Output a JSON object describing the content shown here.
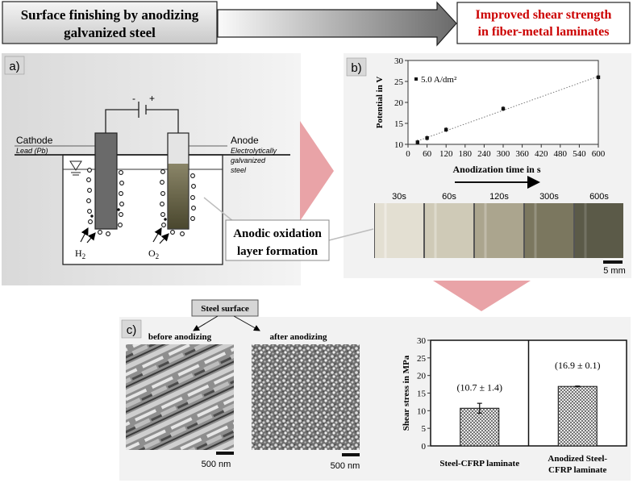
{
  "header": {
    "left_box": "Surface finishing by anodizing galvanized steel",
    "left_line1": "Surface finishing by anodizing",
    "left_line2": "galvanized steel",
    "right_line1": "Improved shear strength",
    "right_line2": "in fiber-metal laminates"
  },
  "panel_a": {
    "label": "a)",
    "polarity_minus": "-",
    "polarity_plus": "+",
    "cathode": "Cathode",
    "cathode_sub": "Lead (Pb)",
    "anode": "Anode",
    "anode_sub1": "Electrolytically",
    "anode_sub2": "galvanized",
    "anode_sub3": "steel",
    "h2": "H",
    "h2_sub": "2",
    "o2": "O",
    "o2_sub": "2",
    "callout1": "Anodic oxidation",
    "callout2": "layer formation"
  },
  "panel_b": {
    "label": "b)",
    "strip_times": [
      "30s",
      "60s",
      "120s",
      "300s",
      "600s"
    ],
    "arrow_label": "Anodization time in s",
    "scale": "5 mm"
  },
  "panel_c": {
    "label": "c)",
    "steel_surface": "Steel surface",
    "before": "before anodizing",
    "after": "after anodizing",
    "scale_left": "500 nm",
    "scale_right": "500 nm"
  },
  "colors": {
    "panel_bg": "#f2f2f2",
    "highlight_red": "#cc0000",
    "pink_arrow": "#e9a3a7",
    "anode_oxide": "#5a5638"
  },
  "chart_data": [
    {
      "type": "scatter",
      "ylabel": "Potential in V",
      "legend": "5.0 A/dm²",
      "legend_position": "top-left",
      "x": [
        30,
        60,
        120,
        300,
        600
      ],
      "y": [
        10.5,
        11.5,
        13.5,
        18.5,
        26
      ],
      "xlim": [
        0,
        600
      ],
      "ylim": [
        10,
        30
      ],
      "xticks": [
        "0",
        "60",
        "120",
        "180",
        "240",
        "300",
        "360",
        "420",
        "480",
        "540",
        "600"
      ],
      "yticks": [
        "10",
        "15",
        "20",
        "25",
        "30"
      ],
      "trendline": "dotted linear"
    },
    {
      "type": "bar",
      "ylabel": "Shear stress in MPa",
      "categories": [
        "Steel-CFRP laminate",
        "Anodized Steel-CFRP laminate"
      ],
      "category_lines": [
        [
          "Steel-CFRP laminate"
        ],
        [
          "Anodized Steel-",
          "CFRP laminate"
        ]
      ],
      "values": [
        10.7,
        16.9
      ],
      "errors": [
        1.4,
        0.1
      ],
      "labels": [
        "(10.7 ± 1.4)",
        "(16.9  ± 0.1)"
      ],
      "ylim": [
        0,
        30
      ],
      "yticks": [
        "0",
        "5",
        "10",
        "15",
        "20",
        "25",
        "30"
      ]
    }
  ]
}
